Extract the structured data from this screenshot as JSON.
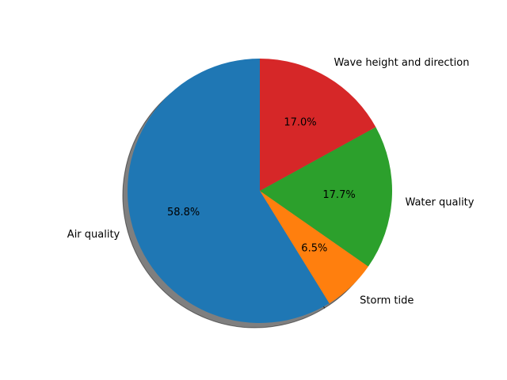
{
  "chart_data": {
    "type": "pie",
    "title": "",
    "start_angle_deg": 90,
    "direction": "counterclockwise",
    "shadow": true,
    "slices": [
      {
        "label": "Air quality",
        "value": 58.8,
        "pct_label": "58.8%",
        "color": "#1f77b4"
      },
      {
        "label": "Storm tide",
        "value": 6.5,
        "pct_label": "6.5%",
        "color": "#ff7f0e"
      },
      {
        "label": "Water quality",
        "value": 17.7,
        "pct_label": "17.7%",
        "color": "#2ca02c"
      },
      {
        "label": "Wave height and direction",
        "value": 17.0,
        "pct_label": "17.0%",
        "color": "#d62728"
      }
    ]
  }
}
